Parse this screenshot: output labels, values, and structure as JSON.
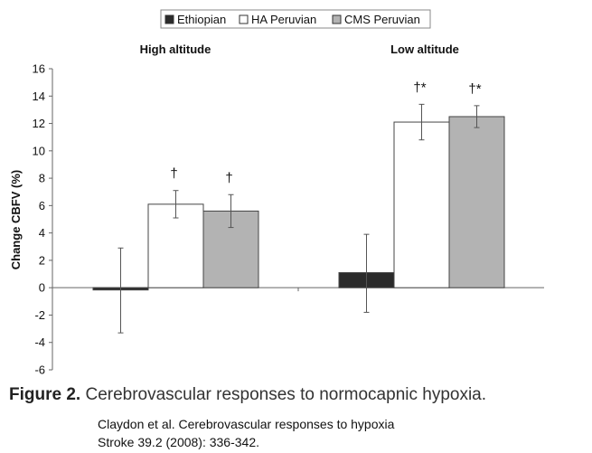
{
  "chart_data": {
    "type": "bar",
    "title": "",
    "xlabel": "",
    "ylabel": "Change CBFV (%)",
    "ylim": [
      -6,
      16
    ],
    "yticks": [
      -6,
      -4,
      -2,
      0,
      2,
      4,
      6,
      8,
      10,
      12,
      14,
      16
    ],
    "legend_position": "top-center",
    "groups": [
      "High altitude",
      "Low altitude"
    ],
    "series": [
      {
        "name": "Ethiopian",
        "color": "#2b2b2b",
        "values": [
          -0.1,
          1.1
        ],
        "error_low": [
          -3.3,
          -1.8
        ],
        "error_high": [
          2.9,
          3.9
        ],
        "markers": [
          "",
          ""
        ]
      },
      {
        "name": "HA Peruvian",
        "color": "#ffffff",
        "values": [
          6.1,
          12.1
        ],
        "error_low": [
          5.1,
          10.8
        ],
        "error_high": [
          7.1,
          13.4
        ],
        "markers": [
          "†",
          "†*"
        ]
      },
      {
        "name": "CMS Peruvian",
        "color": "#b3b3b3",
        "values": [
          5.6,
          12.5
        ],
        "error_low": [
          4.4,
          11.7
        ],
        "error_high": [
          6.8,
          13.3
        ],
        "markers": [
          "†",
          "†*"
        ]
      }
    ]
  },
  "caption": {
    "figure_label": "Figure 2.",
    "figure_text": "Cerebrovascular responses to normocapnic hypoxia."
  },
  "citation": {
    "line1": "Claydon et al. Cerebrovascular responses to hypoxia",
    "line2": "Stroke 39.2 (2008): 336-342."
  }
}
